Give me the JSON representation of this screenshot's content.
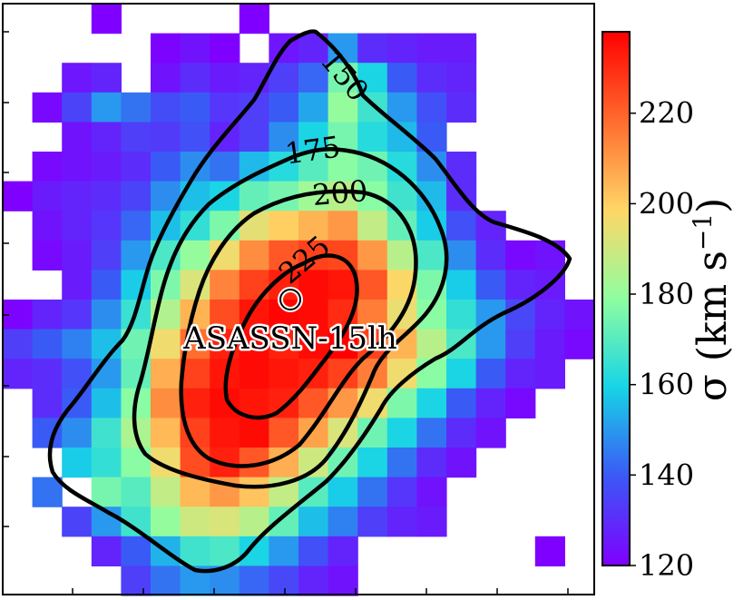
{
  "chart_data": {
    "type": "heatmap",
    "title": "",
    "xlabel": "",
    "ylabel": "",
    "annotation_label": "ASASSN-15lh",
    "colorbar": {
      "label": "σ (km s⁻¹)",
      "label_main": "σ (km s",
      "label_exp": "−1",
      "label_close": ")",
      "vmin": 120,
      "vmax": 238,
      "ticks": [
        "120",
        "140",
        "160",
        "180",
        "200",
        "220"
      ],
      "colormap": "rainbow"
    },
    "contours": [
      {
        "level": 150,
        "label": "150"
      },
      {
        "level": 175,
        "label": "175"
      },
      {
        "level": 200,
        "label": "200"
      },
      {
        "level": 225,
        "label": "225"
      }
    ],
    "colormap_stops": [
      "#7f00ff",
      "#3b58f6",
      "#17d4e6",
      "#8ffea0",
      "#ffd666",
      "#ff6b2e",
      "#ff0000"
    ],
    "grid": {
      "cols": 20,
      "rows": 20
    },
    "values": [
      [
        null,
        null,
        null,
        120,
        null,
        null,
        null,
        null,
        120,
        null,
        null,
        null,
        null,
        null,
        null,
        null,
        null,
        null,
        null,
        null
      ],
      [
        null,
        null,
        null,
        null,
        null,
        121,
        124,
        120,
        null,
        125,
        128,
        150,
        130,
        128,
        126,
        126,
        null,
        null,
        null,
        null
      ],
      [
        null,
        null,
        125,
        128,
        null,
        124,
        130,
        126,
        128,
        134,
        142,
        175,
        160,
        140,
        130,
        128,
        null,
        null,
        null,
        null
      ],
      [
        null,
        122,
        135,
        150,
        144,
        137,
        140,
        132,
        134,
        140,
        152,
        180,
        166,
        150,
        138,
        130,
        null,
        null,
        null,
        null
      ],
      [
        null,
        null,
        124,
        128,
        134,
        133,
        138,
        128,
        134,
        148,
        160,
        175,
        162,
        155,
        140,
        null,
        null,
        null,
        null,
        null
      ],
      [
        null,
        122,
        124,
        126,
        130,
        140,
        148,
        144,
        155,
        162,
        170,
        178,
        174,
        162,
        148,
        130,
        null,
        null,
        null,
        null
      ],
      [
        120,
        126,
        128,
        130,
        135,
        148,
        156,
        160,
        172,
        175,
        182,
        186,
        178,
        166,
        155,
        130,
        null,
        null,
        null,
        null
      ],
      [
        null,
        124,
        128,
        132,
        142,
        156,
        164,
        176,
        194,
        200,
        205,
        210,
        188,
        172,
        158,
        138,
        128,
        null,
        null,
        null
      ],
      [
        null,
        122,
        126,
        134,
        150,
        168,
        180,
        196,
        212,
        222,
        226,
        225,
        210,
        186,
        168,
        148,
        130,
        122,
        124,
        null
      ],
      [
        null,
        null,
        126,
        140,
        158,
        176,
        192,
        214,
        226,
        232,
        236,
        234,
        222,
        198,
        176,
        158,
        140,
        128,
        126,
        null
      ],
      [
        121,
        128,
        132,
        148,
        165,
        185,
        205,
        224,
        234,
        237,
        236,
        230,
        215,
        195,
        178,
        164,
        150,
        136,
        128,
        124
      ],
      [
        134,
        140,
        146,
        156,
        174,
        196,
        218,
        232,
        236,
        232,
        236,
        238,
        226,
        205,
        186,
        168,
        150,
        134,
        126,
        122
      ],
      [
        128,
        130,
        138,
        150,
        172,
        206,
        226,
        234,
        236,
        234,
        232,
        226,
        215,
        196,
        178,
        160,
        140,
        128,
        126,
        null
      ],
      [
        null,
        130,
        140,
        156,
        178,
        212,
        232,
        236,
        234,
        232,
        222,
        210,
        196,
        176,
        160,
        140,
        128,
        122,
        null,
        null
      ],
      [
        null,
        140,
        148,
        166,
        184,
        204,
        226,
        234,
        236,
        222,
        208,
        192,
        174,
        160,
        144,
        130,
        124,
        null,
        null,
        null
      ],
      [
        null,
        null,
        158,
        164,
        178,
        196,
        224,
        232,
        222,
        206,
        190,
        174,
        160,
        144,
        130,
        124,
        null,
        null,
        null,
        null
      ],
      [
        null,
        144,
        null,
        175,
        170,
        188,
        204,
        210,
        202,
        188,
        170,
        158,
        144,
        132,
        124,
        null,
        null,
        null,
        null,
        null
      ],
      [
        null,
        null,
        135,
        150,
        166,
        180,
        190,
        192,
        186,
        172,
        156,
        146,
        134,
        128,
        126,
        null,
        null,
        null,
        null,
        null
      ],
      [
        null,
        null,
        null,
        128,
        140,
        154,
        166,
        168,
        160,
        150,
        138,
        128,
        null,
        null,
        null,
        null,
        null,
        null,
        120,
        null
      ],
      [
        null,
        null,
        null,
        null,
        134,
        144,
        150,
        148,
        142,
        136,
        128,
        124,
        null,
        null,
        null,
        null,
        null,
        null,
        null,
        null
      ]
    ]
  }
}
